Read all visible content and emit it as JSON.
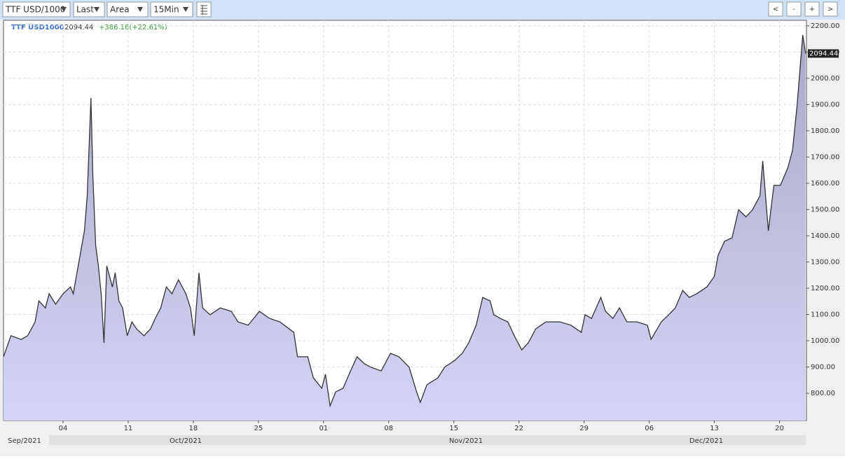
{
  "toolbar": {
    "symbol": "TTF USD/1000",
    "field": "Last",
    "style": "Area",
    "interval": "15Min",
    "nav": [
      "<",
      "-",
      "+",
      ">"
    ]
  },
  "chart_data": {
    "type": "area",
    "legend": {
      "symbol": "TTF USD1000",
      "price": "2094.44",
      "change": "+386.16(+22.61%)"
    },
    "last_value_label": "2094.44",
    "x": [
      -2.4,
      -1.6,
      -0.5,
      0.2,
      1.0,
      1.4,
      2.1,
      2.5,
      3.2,
      4,
      4.8,
      5.1,
      5.5,
      5.9,
      6.3,
      6.6,
      7.0,
      7.2,
      7.5,
      7.8,
      8.1,
      8.4,
      8.7,
      9.3,
      9.6,
      10.0,
      10.4,
      10.9,
      11.4,
      11.9,
      12.7,
      13.4,
      13.9,
      14.5,
      15.1,
      15.7,
      16.4,
      17.2,
      17.7,
      18.1,
      18.6,
      19.0,
      19.8,
      20.9,
      22.1,
      22.8,
      23.9,
      25.1,
      26.2,
      27.3,
      28.8,
      29.2,
      30.3,
      30.9,
      31.8,
      32.2,
      32.7,
      33.3,
      34.1,
      34.9,
      35.6,
      36.4,
      37.1,
      38.2,
      39.2,
      40.1,
      41.2,
      42.0,
      42.4,
      43.1,
      44.3,
      45.0,
      46.1,
      46.9,
      47.6,
      48.4,
      49.1,
      49.9,
      50.3,
      51.0,
      51.8,
      52.5,
      53.3,
      54.0,
      54.8,
      55.9,
      57.4,
      58.6,
      59.7,
      60.1,
      60.8,
      61.8,
      62.3,
      63.1,
      63.8,
      64.6,
      65.7,
      66.8,
      67.2,
      68.3,
      69.1,
      69.8,
      70.6,
      71.3,
      72.1,
      73.2,
      74.0,
      74.4,
      75.1,
      75.9,
      76.6,
      77.4,
      78.1,
      78.9,
      79.2,
      79.8,
      80.4,
      81.1,
      81.9,
      82.4,
      82.9,
      83.2,
      83.5,
      83.8
    ],
    "values": [
      939,
      1019,
      1005,
      1019,
      1072,
      1152,
      1125,
      1179,
      1139,
      1179,
      1205,
      1179,
      1259,
      1339,
      1419,
      1552,
      1925,
      1632,
      1365,
      1285,
      1179,
      992,
      1285,
      1205,
      1259,
      1152,
      1125,
      1019,
      1072,
      1045,
      1019,
      1045,
      1085,
      1125,
      1205,
      1179,
      1232,
      1179,
      1125,
      1019,
      1259,
      1125,
      1099,
      1125,
      1112,
      1072,
      1059,
      1112,
      1085,
      1072,
      1032,
      939,
      939,
      859,
      819,
      872,
      752,
      805,
      819,
      885,
      939,
      912,
      899,
      885,
      952,
      939,
      899,
      805,
      765,
      832,
      859,
      899,
      925,
      952,
      992,
      1059,
      1165,
      1152,
      1099,
      1085,
      1072,
      1019,
      965,
      992,
      1045,
      1072,
      1072,
      1059,
      1032,
      1099,
      1085,
      1165,
      1112,
      1085,
      1125,
      1072,
      1072,
      1059,
      1005,
      1072,
      1099,
      1125,
      1192,
      1165,
      1179,
      1205,
      1245,
      1325,
      1379,
      1392,
      1499,
      1472,
      1499,
      1552,
      1685,
      1419,
      1592,
      1592,
      1659,
      1725,
      1899,
      2032,
      2165,
      2094.44
    ],
    "color": "#333333",
    "fill": "#c8c8f0",
    "xlim": [
      -2.4,
      83.9
    ],
    "ylim": [
      696,
      2221
    ],
    "xticks": [
      {
        "value": 4,
        "label": "04"
      },
      {
        "value": 11,
        "label": "11"
      },
      {
        "value": 18,
        "label": "18"
      },
      {
        "value": 25,
        "label": "25"
      },
      {
        "value": 32,
        "label": "01"
      },
      {
        "value": 39,
        "label": "08"
      },
      {
        "value": 46,
        "label": "15"
      },
      {
        "value": 53,
        "label": "22"
      },
      {
        "value": 60,
        "label": "29"
      },
      {
        "value": 67,
        "label": "06"
      },
      {
        "value": 74,
        "label": "13"
      },
      {
        "value": 81,
        "label": "20"
      }
    ],
    "yticks": [
      {
        "value": 800,
        "label": "800.00"
      },
      {
        "value": 900,
        "label": "900.00"
      },
      {
        "value": 1000,
        "label": "1000.00"
      },
      {
        "value": 1100,
        "label": "1100.00"
      },
      {
        "value": 1200,
        "label": "1200.00"
      },
      {
        "value": 1300,
        "label": "1300.00"
      },
      {
        "value": 1400,
        "label": "1400.00"
      },
      {
        "value": 1500,
        "label": "1500.00"
      },
      {
        "value": 1600,
        "label": "1600.00"
      },
      {
        "value": 1700,
        "label": "1700.00"
      },
      {
        "value": 1800,
        "label": "1800.00"
      },
      {
        "value": 1900,
        "label": "1900.00"
      },
      {
        "value": 2000,
        "label": "2000.00"
      },
      {
        "value": 2100,
        "label": "2100.00"
      },
      {
        "value": 2200,
        "label": "2200.00"
      }
    ],
    "grid": true,
    "month_labels": [
      "Sep/2021",
      "Oct/2021",
      "Nov/2021",
      "Dec/2021"
    ]
  }
}
